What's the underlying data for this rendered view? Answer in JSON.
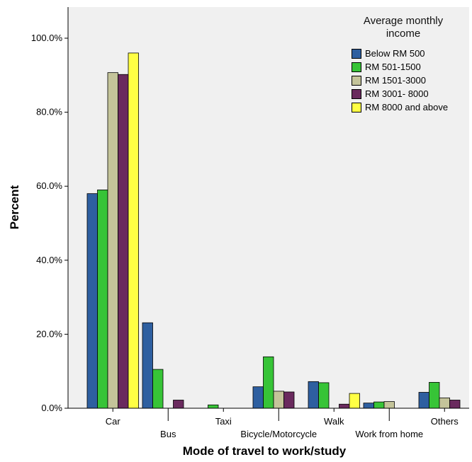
{
  "chart_data": {
    "type": "bar",
    "xlabel": "Mode of travel to work/study",
    "ylabel": "Percent",
    "ylim": [
      0,
      100
    ],
    "yticks": [
      0,
      20,
      40,
      60,
      80,
      100
    ],
    "ytick_labels": [
      "0.0%",
      "20.0%",
      "40.0%",
      "60.0%",
      "80.0%",
      "100.0%"
    ],
    "grid": false,
    "legend_title": "Average monthly income",
    "legend_position": "top-right",
    "categories": [
      "Car",
      "Bus",
      "Taxi",
      "Bicycle/Motorcycle",
      "Walk",
      "Work from home",
      "Others"
    ],
    "series": [
      {
        "name": "Below RM 500",
        "color": "#2e5fa0",
        "values": [
          58.0,
          23.1,
          0.0,
          5.8,
          7.2,
          1.4,
          4.3
        ]
      },
      {
        "name": "RM 501-1500",
        "color": "#37c437",
        "values": [
          59.0,
          10.5,
          0.9,
          13.9,
          6.9,
          1.7,
          7.0
        ]
      },
      {
        "name": "RM 1501-3000",
        "color": "#c4c49a",
        "values": [
          90.7,
          0.0,
          0.0,
          4.6,
          0.0,
          1.8,
          2.8
        ]
      },
      {
        "name": "RM 3001- 8000",
        "color": "#6a2a5e",
        "values": [
          90.2,
          2.2,
          0.0,
          4.4,
          1.1,
          0.0,
          2.2
        ]
      },
      {
        "name": "RM 8000 and above",
        "color": "#ffff44",
        "values": [
          96.0,
          0.0,
          0.0,
          0.0,
          4.0,
          0.0,
          0.0
        ]
      }
    ]
  }
}
